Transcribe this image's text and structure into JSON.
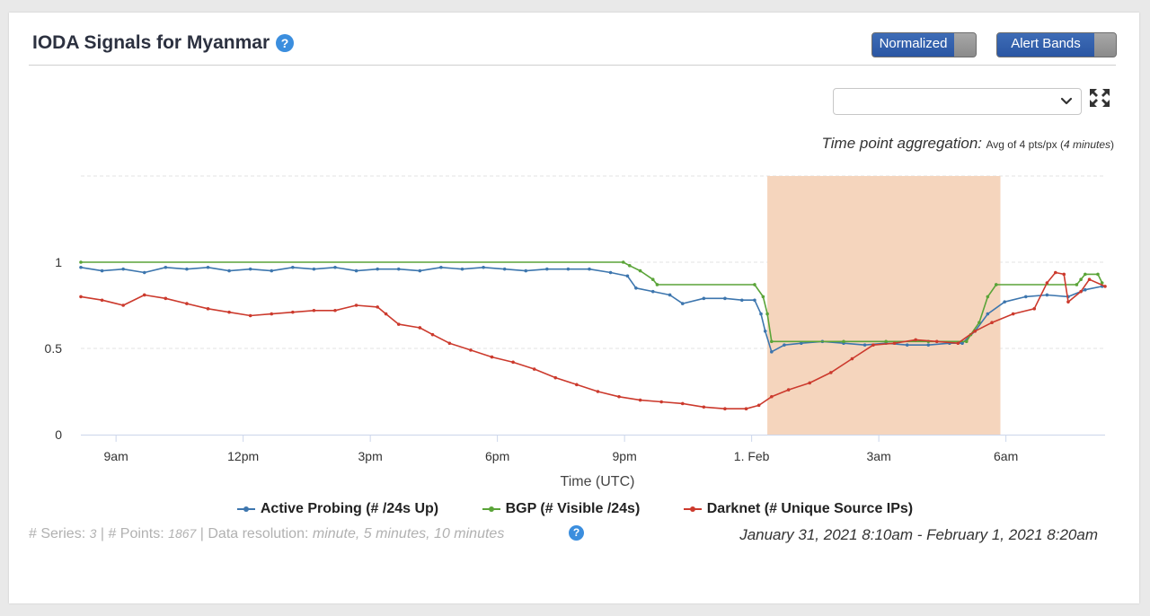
{
  "header": {
    "title": "IODA Signals for Myanmar",
    "help_glyph": "?",
    "normalized_label": "Normalized",
    "alert_bands_label": "Alert Bands"
  },
  "controls": {
    "select_value": "",
    "expand_icon": "expand-icon"
  },
  "aggregation": {
    "label": "Time point aggregation:",
    "value_prefix": "Avg of 4 pts/px (",
    "value_italic": "4 minutes",
    "value_suffix": ")"
  },
  "footer": {
    "series_label": "# Series:",
    "series_count": "3",
    "points_label": "# Points:",
    "points_count": "1867",
    "resolution_label": "Data resolution:",
    "resolution_value": "minute, 5 minutes, 10 minutes",
    "date_range": "January 31, 2021 8:10am - February 1, 2021 8:20am"
  },
  "colors": {
    "accent": "#3b8ede",
    "alert_band": "#f5d5bd"
  },
  "chart_data": {
    "type": "line",
    "x_unit": "hours since Jan 31, 2021 8:10am (UTC)",
    "xlabel": "Time (UTC)",
    "xlim": [
      0,
      24.17
    ],
    "ylim": [
      0,
      1.5
    ],
    "x_ticks": [
      {
        "x": 0.83,
        "label": "9am"
      },
      {
        "x": 3.83,
        "label": "12pm"
      },
      {
        "x": 6.83,
        "label": "3pm"
      },
      {
        "x": 9.83,
        "label": "6pm"
      },
      {
        "x": 12.83,
        "label": "9pm"
      },
      {
        "x": 15.83,
        "label": "1. Feb"
      },
      {
        "x": 18.83,
        "label": "3am"
      },
      {
        "x": 21.83,
        "label": "6am"
      }
    ],
    "y_ticks": [
      {
        "y": 0,
        "label": "0"
      },
      {
        "y": 0.5,
        "label": "0.5"
      },
      {
        "y": 1,
        "label": "1"
      }
    ],
    "alert_band": {
      "x_start": 16.2,
      "x_end": 21.7
    },
    "series": [
      {
        "name": "Active Probing (# /24s Up)",
        "color": "#3d76ae",
        "points": [
          [
            0,
            0.97
          ],
          [
            0.5,
            0.95
          ],
          [
            1,
            0.96
          ],
          [
            1.5,
            0.94
          ],
          [
            2,
            0.97
          ],
          [
            2.5,
            0.96
          ],
          [
            3,
            0.97
          ],
          [
            3.5,
            0.95
          ],
          [
            4,
            0.96
          ],
          [
            4.5,
            0.95
          ],
          [
            5,
            0.97
          ],
          [
            5.5,
            0.96
          ],
          [
            6,
            0.97
          ],
          [
            6.5,
            0.95
          ],
          [
            7,
            0.96
          ],
          [
            7.5,
            0.96
          ],
          [
            8,
            0.95
          ],
          [
            8.5,
            0.97
          ],
          [
            9,
            0.96
          ],
          [
            9.5,
            0.97
          ],
          [
            10,
            0.96
          ],
          [
            10.5,
            0.95
          ],
          [
            11,
            0.96
          ],
          [
            11.5,
            0.96
          ],
          [
            12,
            0.96
          ],
          [
            12.5,
            0.94
          ],
          [
            12.9,
            0.92
          ],
          [
            13.1,
            0.85
          ],
          [
            13.5,
            0.83
          ],
          [
            13.9,
            0.81
          ],
          [
            14.2,
            0.76
          ],
          [
            14.7,
            0.79
          ],
          [
            15.2,
            0.79
          ],
          [
            15.6,
            0.78
          ],
          [
            15.9,
            0.78
          ],
          [
            16.05,
            0.7
          ],
          [
            16.15,
            0.6
          ],
          [
            16.3,
            0.48
          ],
          [
            16.6,
            0.52
          ],
          [
            17,
            0.53
          ],
          [
            17.5,
            0.54
          ],
          [
            18,
            0.53
          ],
          [
            18.5,
            0.52
          ],
          [
            19,
            0.53
          ],
          [
            19.5,
            0.52
          ],
          [
            20,
            0.52
          ],
          [
            20.5,
            0.53
          ],
          [
            20.8,
            0.53
          ],
          [
            21.1,
            0.6
          ],
          [
            21.4,
            0.7
          ],
          [
            21.8,
            0.77
          ],
          [
            22.3,
            0.8
          ],
          [
            22.8,
            0.81
          ],
          [
            23.3,
            0.8
          ],
          [
            23.7,
            0.84
          ],
          [
            24.1,
            0.86
          ]
        ]
      },
      {
        "name": "BGP (# Visible /24s)",
        "color": "#5aa438",
        "points": [
          [
            0,
            1
          ],
          [
            12.8,
            1
          ],
          [
            12.95,
            0.98
          ],
          [
            13.2,
            0.95
          ],
          [
            13.5,
            0.9
          ],
          [
            13.6,
            0.87
          ],
          [
            15.9,
            0.87
          ],
          [
            16.1,
            0.8
          ],
          [
            16.2,
            0.7
          ],
          [
            16.3,
            0.54
          ],
          [
            18,
            0.54
          ],
          [
            19,
            0.54
          ],
          [
            20,
            0.54
          ],
          [
            20.9,
            0.54
          ],
          [
            21,
            0.58
          ],
          [
            21.2,
            0.65
          ],
          [
            21.4,
            0.8
          ],
          [
            21.6,
            0.87
          ],
          [
            23.5,
            0.87
          ],
          [
            23.6,
            0.9
          ],
          [
            23.7,
            0.93
          ],
          [
            24,
            0.93
          ],
          [
            24.1,
            0.88
          ]
        ]
      },
      {
        "name": "Darknet (# Unique Source IPs)",
        "color": "#cc3a2d",
        "points": [
          [
            0,
            0.8
          ],
          [
            0.5,
            0.78
          ],
          [
            1,
            0.75
          ],
          [
            1.5,
            0.81
          ],
          [
            2,
            0.79
          ],
          [
            2.5,
            0.76
          ],
          [
            3,
            0.73
          ],
          [
            3.5,
            0.71
          ],
          [
            4,
            0.69
          ],
          [
            4.5,
            0.7
          ],
          [
            5,
            0.71
          ],
          [
            5.5,
            0.72
          ],
          [
            6,
            0.72
          ],
          [
            6.5,
            0.75
          ],
          [
            7,
            0.74
          ],
          [
            7.2,
            0.7
          ],
          [
            7.5,
            0.64
          ],
          [
            8,
            0.62
          ],
          [
            8.3,
            0.58
          ],
          [
            8.7,
            0.53
          ],
          [
            9.2,
            0.49
          ],
          [
            9.7,
            0.45
          ],
          [
            10.2,
            0.42
          ],
          [
            10.7,
            0.38
          ],
          [
            11.2,
            0.33
          ],
          [
            11.7,
            0.29
          ],
          [
            12.2,
            0.25
          ],
          [
            12.7,
            0.22
          ],
          [
            13.2,
            0.2
          ],
          [
            13.7,
            0.19
          ],
          [
            14.2,
            0.18
          ],
          [
            14.7,
            0.16
          ],
          [
            15.2,
            0.15
          ],
          [
            15.7,
            0.15
          ],
          [
            16,
            0.17
          ],
          [
            16.3,
            0.22
          ],
          [
            16.7,
            0.26
          ],
          [
            17.2,
            0.3
          ],
          [
            17.7,
            0.36
          ],
          [
            18.2,
            0.44
          ],
          [
            18.7,
            0.52
          ],
          [
            19.2,
            0.53
          ],
          [
            19.7,
            0.55
          ],
          [
            20.2,
            0.54
          ],
          [
            20.7,
            0.53
          ],
          [
            21.1,
            0.6
          ],
          [
            21.5,
            0.65
          ],
          [
            22,
            0.7
          ],
          [
            22.5,
            0.73
          ],
          [
            22.8,
            0.88
          ],
          [
            23,
            0.94
          ],
          [
            23.2,
            0.93
          ],
          [
            23.3,
            0.77
          ],
          [
            23.6,
            0.83
          ],
          [
            23.8,
            0.9
          ],
          [
            24.17,
            0.86
          ]
        ]
      }
    ]
  }
}
